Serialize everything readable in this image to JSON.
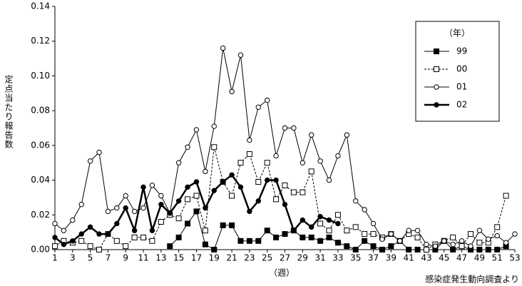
{
  "chart_data": {
    "type": "line",
    "y_label": "定点当たり報告数",
    "x_label": "（週）",
    "source": "感染症発生動向調査より",
    "legend_title": "（年）",
    "x": [
      1,
      2,
      3,
      4,
      5,
      6,
      7,
      8,
      9,
      10,
      11,
      12,
      13,
      14,
      15,
      16,
      17,
      18,
      19,
      20,
      21,
      22,
      23,
      24,
      25,
      26,
      27,
      28,
      29,
      30,
      31,
      32,
      33,
      34,
      35,
      36,
      37,
      38,
      39,
      40,
      41,
      42,
      43,
      44,
      45,
      46,
      47,
      48,
      49,
      50,
      51,
      52,
      53
    ],
    "xlim": [
      1,
      53
    ],
    "xticks": [
      1,
      3,
      5,
      7,
      9,
      11,
      13,
      15,
      17,
      19,
      21,
      23,
      25,
      27,
      29,
      31,
      33,
      35,
      37,
      39,
      41,
      43,
      45,
      47,
      49,
      51,
      53
    ],
    "ylim": [
      0,
      0.14
    ],
    "yticks": [
      {
        "value": 0,
        "label": "0.00"
      },
      {
        "value": 0.02,
        "label": "0.02"
      },
      {
        "value": 0.04,
        "label": "0.04"
      },
      {
        "value": 0.06,
        "label": "0.06"
      },
      {
        "value": 0.08,
        "label": "0.08"
      },
      {
        "value": 0.1,
        "label": "0.10"
      },
      {
        "value": 0.12,
        "label": "0.12"
      },
      {
        "value": 0.14,
        "label": "0.14"
      }
    ],
    "grid": false,
    "legend": "upper right",
    "series": [
      {
        "name": "99",
        "color": "#000000",
        "marker": "filled-square",
        "dashed": false,
        "width": 1,
        "values": [
          null,
          null,
          null,
          null,
          null,
          null,
          null,
          null,
          null,
          null,
          null,
          null,
          null,
          0.002,
          0.007,
          0.015,
          0.022,
          0.003,
          0.0,
          0.014,
          0.014,
          0.005,
          0.005,
          0.005,
          0.011,
          0.007,
          0.009,
          0.011,
          0.007,
          0.007,
          0.005,
          0.007,
          0.004,
          0.002,
          0.0,
          0.005,
          0.002,
          0.0,
          0.002,
          0.005,
          0.0,
          0.0,
          0.0,
          0.0,
          0.005,
          0.0,
          0.002,
          0.0,
          0.0,
          0.0,
          0.0,
          0.002,
          null
        ]
      },
      {
        "name": "00",
        "color": "#000000",
        "marker": "open-square",
        "dashed": true,
        "width": 1,
        "values": [
          0.002,
          0.005,
          0.004,
          0.005,
          0.002,
          0.0,
          0.009,
          0.005,
          0.002,
          0.007,
          0.007,
          0.005,
          0.016,
          0.02,
          0.018,
          0.029,
          0.031,
          0.011,
          0.059,
          0.039,
          0.031,
          0.05,
          0.055,
          0.039,
          0.05,
          0.029,
          0.037,
          0.033,
          0.033,
          0.045,
          0.015,
          0.011,
          0.02,
          0.011,
          0.013,
          0.009,
          0.009,
          0.007,
          0.009,
          0.005,
          0.009,
          0.007,
          0.0,
          0.003,
          0.005,
          0.007,
          0.002,
          0.009,
          0.004,
          0.004,
          0.013,
          0.031,
          null
        ]
      },
      {
        "name": "01",
        "color": "#000000",
        "marker": "open-circle",
        "dashed": false,
        "width": 1,
        "values": [
          0.015,
          0.011,
          0.017,
          0.026,
          0.051,
          0.056,
          0.022,
          0.024,
          0.031,
          0.022,
          0.024,
          0.037,
          0.031,
          0.021,
          0.05,
          0.059,
          0.069,
          0.045,
          0.071,
          0.116,
          0.091,
          0.112,
          0.063,
          0.082,
          0.086,
          0.054,
          0.07,
          0.07,
          0.05,
          0.066,
          0.051,
          0.04,
          0.054,
          0.066,
          0.028,
          0.023,
          0.015,
          0.006,
          0.009,
          0.005,
          0.011,
          0.011,
          0.003,
          0.002,
          0.005,
          0.003,
          0.005,
          0.002,
          0.011,
          0.006,
          0.008,
          0.004,
          0.009
        ]
      },
      {
        "name": "02",
        "color": "#000000",
        "marker": "filled-circle",
        "dashed": false,
        "width": 2.5,
        "values": [
          0.007,
          0.003,
          0.005,
          0.009,
          0.013,
          0.009,
          0.009,
          0.015,
          0.024,
          0.011,
          0.036,
          0.011,
          0.026,
          0.021,
          0.028,
          0.036,
          0.039,
          0.024,
          0.034,
          0.039,
          0.043,
          0.036,
          0.022,
          0.028,
          0.04,
          0.04,
          0.026,
          0.011,
          0.017,
          0.013,
          0.019,
          0.017,
          0.015,
          null,
          null,
          null,
          null,
          null,
          null,
          null,
          null,
          null,
          null,
          null,
          null,
          null,
          null,
          null,
          null,
          null,
          null,
          null,
          null
        ]
      }
    ]
  }
}
